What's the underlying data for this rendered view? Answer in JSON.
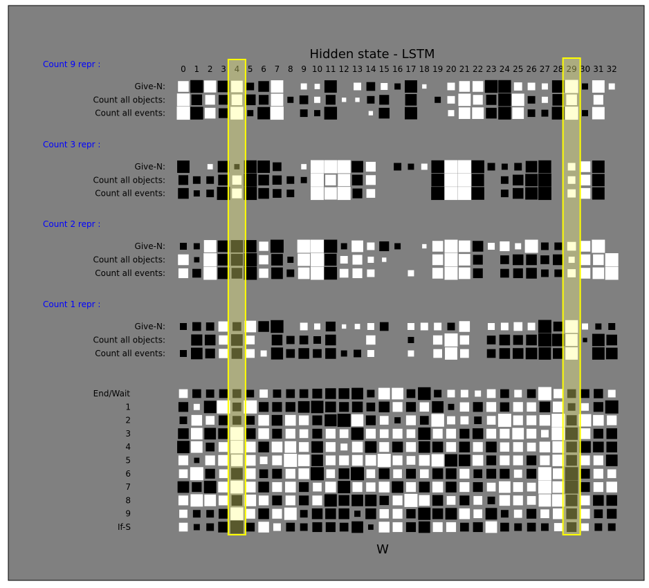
{
  "chart_data": {
    "type": "heatmap",
    "title": "Hidden state - LSTM",
    "xlabel": "W",
    "columns": [
      "0",
      "1",
      "2",
      "3",
      "4",
      "5",
      "6",
      "7",
      "8",
      "9",
      "10",
      "11",
      "12",
      "13",
      "14",
      "15",
      "16",
      "17",
      "18",
      "19",
      "20",
      "21",
      "22",
      "23",
      "24",
      "25",
      "26",
      "27",
      "28",
      "29",
      "30",
      "31",
      "32"
    ],
    "value_range": [
      -1,
      1
    ],
    "encoding": "square size = |value|, white = positive, black = negative",
    "highlighted_columns": [
      "4",
      "29"
    ],
    "colors": {
      "background": "#808080",
      "positive": "#ffffff",
      "negative": "#000000",
      "highlight_fill": "#ffff80",
      "highlight_border": "#ffff00",
      "group_label": "#0000ff",
      "text": "#000000"
    },
    "groups": [
      {
        "label": "Count 9 repr :",
        "rows": [
          {
            "label": "Give-N:",
            "values": [
              0.6,
              -0.85,
              0.75,
              -0.7,
              0.7,
              -0.3,
              -0.6,
              0.8,
              0,
              0.2,
              0.15,
              -0.8,
              0,
              0.3,
              -0.4,
              0.25,
              -0.2,
              -0.8,
              0.1,
              0,
              0.3,
              0.6,
              0.6,
              -0.85,
              -0.85,
              0.35,
              0.3,
              0.2,
              -0.8,
              0.9,
              -0.2,
              0.8,
              0.2
            ]
          },
          {
            "label": "Count all objects:",
            "values": [
              0.85,
              -0.6,
              0.5,
              -0.5,
              0.6,
              -0.6,
              -0.5,
              0.8,
              -0.2,
              -0.4,
              0.2,
              -0.5,
              0.1,
              0.1,
              -0.3,
              -0.5,
              0,
              -0.7,
              0,
              -0.2,
              0.3,
              0.8,
              0.5,
              -0.55,
              -0.85,
              0.8,
              -0.3,
              0.2,
              -0.7,
              0.6,
              0,
              0.5,
              0
            ]
          },
          {
            "label": "Count all events:",
            "values": [
              0.9,
              -0.85,
              0.6,
              -0.5,
              0.85,
              -0.2,
              -0.8,
              0.9,
              0,
              -0.3,
              -0.2,
              -0.85,
              0,
              0,
              0.1,
              -0.6,
              0,
              -0.8,
              0,
              0,
              0.2,
              0.7,
              0.7,
              -0.6,
              -0.85,
              0.7,
              -0.3,
              -0.25,
              -0.85,
              0.9,
              -0.2,
              0.8,
              0
            ]
          }
        ]
      },
      {
        "label": "Count 3 repr :",
        "rows": [
          {
            "label": "Give-N:",
            "values": [
              -0.8,
              0,
              0.15,
              -0.7,
              -0.15,
              -0.85,
              -0.8,
              -0.4,
              0,
              0.15,
              0.9,
              0.9,
              0.9,
              -0.7,
              0.5,
              0,
              -0.3,
              -0.2,
              0.2,
              -0.85,
              0.9,
              0.9,
              -0.85,
              -0.3,
              -0.2,
              -0.3,
              -0.7,
              -0.85,
              0,
              0.3,
              0.6,
              -0.8,
              0
            ]
          },
          {
            "label": "Count all objects:",
            "values": [
              -0.5,
              -0.3,
              -0.3,
              -0.6,
              0.45,
              -0.9,
              -0.6,
              -0.45,
              -0.3,
              -0.2,
              0.9,
              0.6,
              0.8,
              -0.6,
              0.5,
              0,
              0,
              0,
              0,
              -0.85,
              0.9,
              0.9,
              -0.8,
              0,
              -0.3,
              -0.6,
              -0.8,
              -0.9,
              0,
              0.3,
              0.6,
              -0.8,
              0
            ]
          },
          {
            "label": "Count all events:",
            "values": [
              -0.6,
              -0.2,
              -0.3,
              -0.9,
              0.5,
              -0.9,
              -0.6,
              -0.4,
              -0.3,
              0,
              0.9,
              0.8,
              0.9,
              -0.5,
              0.4,
              0,
              0,
              0,
              0,
              -0.9,
              0.9,
              0.9,
              -0.85,
              0,
              -0.3,
              -0.6,
              -0.8,
              -0.9,
              0,
              0.35,
              0.6,
              -0.8,
              0
            ]
          }
        ]
      },
      {
        "label": "Count 2 repr :",
        "rows": [
          {
            "label": "Give-N:",
            "values": [
              -0.25,
              -0.2,
              0.8,
              -0.7,
              -0.8,
              -0.8,
              0.45,
              -0.9,
              0,
              0.9,
              0.9,
              -0.9,
              -0.2,
              0.7,
              0.3,
              -0.5,
              -0.2,
              0,
              0.1,
              0.6,
              0.9,
              0.7,
              -0.6,
              0.25,
              0.5,
              0.2,
              0.9,
              -0.3,
              -0.3,
              0.4,
              0.6,
              0.9,
              0
            ]
          },
          {
            "label": "Count all objects:",
            "values": [
              0.6,
              -0.15,
              0.9,
              -0.7,
              -0.75,
              -0.9,
              0.45,
              -0.7,
              -0.2,
              0.8,
              0.9,
              -0.75,
              0.3,
              0.5,
              0.2,
              0.1,
              0,
              0,
              0,
              0.6,
              0.9,
              0.7,
              -0.5,
              0,
              -0.4,
              -0.6,
              -0.6,
              -0.4,
              -0.6,
              0.2,
              0.6,
              0.6,
              0.9
            ]
          },
          {
            "label": "Count all events:",
            "values": [
              0.5,
              -0.4,
              0.9,
              -0.7,
              -0.6,
              -0.9,
              0.45,
              -0.7,
              -0.3,
              0.7,
              0.9,
              -0.85,
              0.4,
              0.5,
              0.3,
              0,
              0,
              0.2,
              0,
              0.6,
              0.9,
              0.7,
              -0.5,
              0,
              -0.4,
              -0.5,
              -0.6,
              -0.3,
              -0.3,
              0.35,
              0.6,
              0.7,
              0.9
            ]
          }
        ]
      },
      {
        "label": "Count 1 repr :",
        "rows": [
          {
            "label": "Give-N:",
            "values": [
              -0.25,
              -0.4,
              -0.35,
              0.55,
              -0.4,
              0.7,
              -0.6,
              -0.85,
              0,
              0.3,
              0.2,
              -0.5,
              0.1,
              0.15,
              0.25,
              -0.4,
              0,
              0.25,
              0.3,
              0.3,
              -0.3,
              0.6,
              0,
              0.25,
              0.3,
              0.4,
              0.3,
              -0.9,
              -0.5,
              0.85,
              0.2,
              -0.2,
              -0.25
            ]
          },
          {
            "label": "Count all objects:",
            "values": [
              0,
              -0.65,
              -0.6,
              0.45,
              -0.7,
              0.4,
              0,
              -0.6,
              -0.35,
              -0.4,
              -0.3,
              -0.6,
              0,
              0,
              0.45,
              0,
              0,
              -0.2,
              0,
              0.45,
              0.9,
              0.45,
              0,
              -0.4,
              -0.6,
              -0.5,
              -0.6,
              -0.9,
              -0.8,
              0.75,
              -0.1,
              -0.8,
              -0.6
            ]
          },
          {
            "label": "Count all events:",
            "values": [
              -0.25,
              -0.7,
              -0.5,
              0.45,
              -0.6,
              0.4,
              0.2,
              -0.75,
              -0.4,
              -0.6,
              -0.4,
              -0.6,
              -0.2,
              -0.3,
              0.25,
              0,
              0,
              0.2,
              0,
              0.4,
              0.8,
              0.4,
              0,
              -0.4,
              -0.6,
              -0.6,
              -0.7,
              -0.8,
              -0.6,
              0.8,
              0,
              -0.8,
              -0.7
            ]
          }
        ]
      },
      {
        "label": "",
        "rows": [
          {
            "label": "End/Wait",
            "values": [
              0.4,
              -0.4,
              -0.35,
              -0.4,
              -0.4,
              -0.3,
              0.35,
              -0.35,
              -0.4,
              -0.4,
              -0.5,
              -0.6,
              -0.6,
              -0.7,
              -0.3,
              0.7,
              0.7,
              -0.4,
              -0.85,
              -0.3,
              0.3,
              0.3,
              0.2,
              0.4,
              -0.4,
              0.3,
              -0.4,
              0.9,
              0.45,
              -0.4,
              -0.4,
              -0.45,
              0.3
            ]
          },
          {
            "label": "1",
            "values": [
              -0.5,
              0.2,
              -0.8,
              0.9,
              -0.4,
              0.9,
              -0.5,
              -0.5,
              -0.5,
              -0.7,
              -0.8,
              -0.6,
              -0.5,
              -0.6,
              -0.4,
              -0.6,
              0.5,
              -0.5,
              0.45,
              -0.7,
              -0.2,
              0.45,
              -0.5,
              0.5,
              -0.45,
              0.5,
              0.45,
              -0.6,
              0.6,
              -0.3,
              0.3,
              -0.5,
              -0.9
            ]
          },
          {
            "label": "2",
            "values": [
              -0.3,
              0.6,
              0.4,
              -0.5,
              -0.4,
              -0.4,
              0.6,
              -0.6,
              0.6,
              0.5,
              -0.5,
              -0.75,
              -0.9,
              0.75,
              -0.5,
              0.4,
              -0.2,
              0.5,
              -0.4,
              0.85,
              0.35,
              0.35,
              -0.3,
              0.4,
              0.9,
              0.5,
              0.5,
              0.6,
              0.9,
              -0.55,
              0.8,
              0.6,
              0.5
            ]
          },
          {
            "label": "3",
            "values": [
              -0.6,
              0.7,
              -0.7,
              -0.6,
              0.9,
              -0.6,
              0.6,
              -0.5,
              0.5,
              0.4,
              -0.5,
              0.5,
              0.4,
              -0.8,
              0.5,
              0.4,
              0.5,
              0.4,
              -0.8,
              0.5,
              0.5,
              -0.5,
              -0.6,
              0.5,
              0.5,
              0.7,
              0.5,
              0.3,
              0.9,
              -0.8,
              0.6,
              -0.5,
              -0.6
            ]
          },
          {
            "label": "4",
            "values": [
              -0.8,
              0.7,
              -0.4,
              0.5,
              0.85,
              0.6,
              -0.6,
              0.6,
              0.7,
              0.5,
              -0.7,
              0.5,
              0.25,
              0.6,
              -0.7,
              0.5,
              -0.6,
              0.5,
              -0.7,
              -0.6,
              0.5,
              -0.6,
              0.5,
              -0.6,
              0.45,
              0.5,
              0.4,
              0.6,
              0.7,
              -0.6,
              -0.7,
              -0.6,
              -0.6
            ]
          },
          {
            "label": "5",
            "values": [
              0.5,
              -0.15,
              0.5,
              0.6,
              0.7,
              0.6,
              0.3,
              0.5,
              0.9,
              0.7,
              -0.7,
              0.5,
              0.5,
              0.6,
              0.6,
              0.9,
              0.5,
              0.4,
              0.6,
              0.8,
              -0.8,
              -0.7,
              0.6,
              -0.5,
              0.5,
              0.5,
              -0.5,
              0.5,
              0.7,
              -0.6,
              0.5,
              0.5,
              -0.7
            ]
          },
          {
            "label": "6",
            "values": [
              0.4,
              0.9,
              -0.5,
              0.4,
              -0.7,
              0.6,
              -0.4,
              -0.5,
              0.5,
              0.6,
              -0.9,
              0.4,
              -0.6,
              -0.9,
              0.4,
              -0.6,
              0.4,
              -0.5,
              0.4,
              -0.6,
              -0.6,
              0.5,
              -0.4,
              -0.5,
              -0.5,
              0.35,
              -0.5,
              0.9,
              0.6,
              -0.9,
              -0.5,
              0.5,
              0.4
            ]
          },
          {
            "label": "7",
            "values": [
              -0.7,
              -0.5,
              -0.8,
              0.6,
              0.85,
              0.6,
              -0.6,
              0.5,
              0.6,
              -0.5,
              0.4,
              0.6,
              -0.8,
              0.5,
              0.45,
              0.6,
              -0.7,
              0.5,
              -0.6,
              0.6,
              -0.6,
              0.5,
              -0.5,
              0.4,
              0.7,
              0.5,
              0.4,
              0.9,
              0.7,
              -0.9,
              -0.5,
              0.5,
              0.6
            ]
          },
          {
            "label": "8",
            "values": [
              0.5,
              0.8,
              0.7,
              0.5,
              -0.6,
              0.7,
              0.5,
              -0.5,
              0.5,
              -0.5,
              0.5,
              -0.8,
              -0.6,
              -0.7,
              -0.7,
              -0.45,
              0.5,
              0.9,
              0.6,
              -0.6,
              0.4,
              -0.5,
              0.4,
              -0.3,
              0.6,
              0.5,
              0.4,
              0.8,
              0.8,
              -0.7,
              0.5,
              -0.6,
              -0.6
            ]
          },
          {
            "label": "9",
            "values": [
              0.35,
              -0.3,
              -0.3,
              -0.5,
              0.85,
              0.5,
              -0.6,
              0.5,
              0.8,
              -0.3,
              -0.6,
              -0.6,
              -0.6,
              -0.2,
              -0.6,
              0.45,
              0.5,
              -0.45,
              -0.8,
              -0.6,
              -0.7,
              0.6,
              0.4,
              -0.7,
              -0.3,
              0.35,
              -0.5,
              0.4,
              0.6,
              -0.6,
              0.5,
              -0.4,
              -0.5
            ]
          },
          {
            "label": "If-S",
            "values": [
              0.4,
              -0.2,
              -0.3,
              -0.6,
              -0.9,
              -0.4,
              0.6,
              0.3,
              -0.4,
              -0.3,
              -0.5,
              -0.5,
              -0.4,
              -0.7,
              -0.15,
              0.6,
              0.5,
              -0.5,
              -0.7,
              0.5,
              0.5,
              -0.4,
              -0.5,
              0.7,
              -0.4,
              -0.3,
              -0.4,
              -0.3,
              0.35,
              -0.5,
              0.3,
              -0.3,
              -0.3
            ]
          }
        ]
      }
    ]
  }
}
